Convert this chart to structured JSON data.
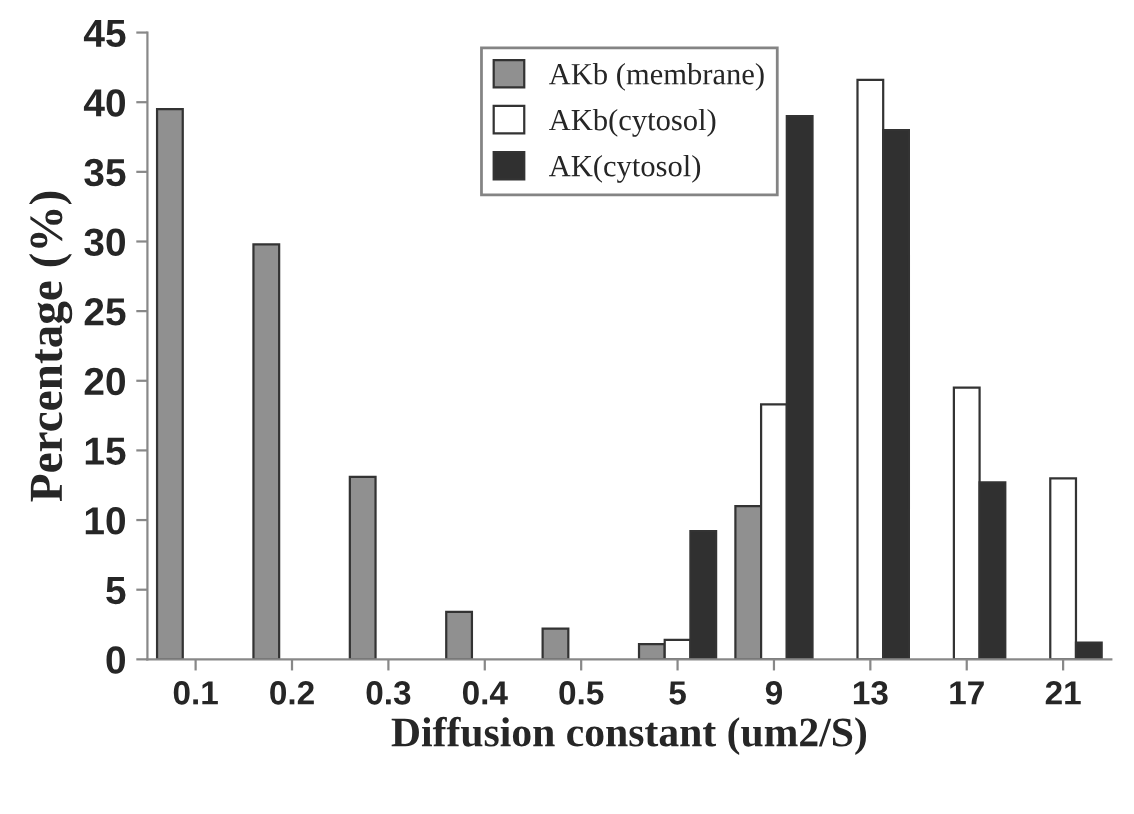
{
  "chart_data": {
    "type": "bar",
    "xlabel": "Diffusion constant (um2/S)",
    "ylabel": "Percentage (%)",
    "categories": [
      "0.1",
      "0.2",
      "0.3",
      "0.4",
      "0.5",
      "5",
      "9",
      "13",
      "17",
      "21"
    ],
    "series": [
      {
        "name": "AKb (membrane)",
        "color": "#909090",
        "values": [
          39.5,
          29.8,
          13.1,
          3.4,
          2.2,
          1.1,
          11.0,
          null,
          null,
          null
        ]
      },
      {
        "name": "AKb(cytosol)",
        "color": "#ffffff",
        "values": [
          null,
          null,
          null,
          null,
          null,
          1.4,
          18.3,
          41.6,
          19.5,
          13.0
        ]
      },
      {
        "name": "AK(cytosol)",
        "color": "#303030",
        "values": [
          null,
          null,
          null,
          null,
          null,
          9.2,
          39.0,
          38.0,
          12.7,
          1.2
        ]
      }
    ],
    "ylim": [
      0,
      45
    ],
    "yticks": [
      0,
      5,
      10,
      15,
      20,
      25,
      30,
      35,
      40,
      45
    ],
    "grid": false,
    "legend": "top"
  }
}
